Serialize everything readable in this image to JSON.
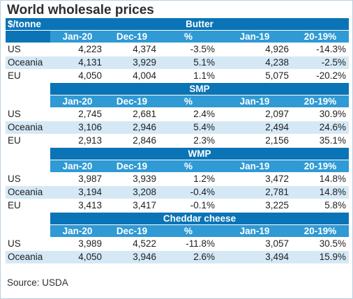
{
  "title": "World wholesale prices",
  "units": "$/tonne",
  "columns": [
    "Jan-20",
    "Dec-19",
    "%",
    "Jan-19",
    "20-19%"
  ],
  "sections": [
    {
      "name": "Butter",
      "rows": [
        {
          "region": "US",
          "values": [
            "4,223",
            "4,374",
            "-3.5%",
            "4,926",
            "-14.3%"
          ]
        },
        {
          "region": "Oceania",
          "values": [
            "4,131",
            "3,929",
            "5.1%",
            "4,238",
            "-2.5%"
          ]
        },
        {
          "region": "EU",
          "values": [
            "4,050",
            "4,004",
            "1.1%",
            "5,075",
            "-20.2%"
          ]
        }
      ]
    },
    {
      "name": "SMP",
      "rows": [
        {
          "region": "US",
          "values": [
            "2,745",
            "2,681",
            "2.4%",
            "2,097",
            "30.9%"
          ]
        },
        {
          "region": "Oceania",
          "values": [
            "3,106",
            "2,946",
            "5.4%",
            "2,494",
            "24.6%"
          ]
        },
        {
          "region": "EU",
          "values": [
            "2,913",
            "2,846",
            "2.3%",
            "2,156",
            "35.1%"
          ]
        }
      ]
    },
    {
      "name": "WMP",
      "rows": [
        {
          "region": "US",
          "values": [
            "3,987",
            "3,939",
            "1.2%",
            "3,472",
            "14.8%"
          ]
        },
        {
          "region": "Oceania",
          "values": [
            "3,194",
            "3,208",
            "-0.4%",
            "2,781",
            "14.8%"
          ]
        },
        {
          "region": "EU",
          "values": [
            "3,413",
            "3,417",
            "-0.1%",
            "3,225",
            "5.8%"
          ]
        }
      ]
    },
    {
      "name": "Cheddar cheese",
      "rows": [
        {
          "region": "US",
          "values": [
            "3,989",
            "4,522",
            "-11.8%",
            "3,057",
            "30.5%"
          ]
        },
        {
          "region": "Oceania",
          "values": [
            "4,050",
            "3,946",
            "2.6%",
            "3,494",
            "15.9%"
          ]
        }
      ]
    }
  ],
  "source": "Source: USDA",
  "colors": {
    "band": "#0b74b6",
    "column_header": "#2f9ad4",
    "shaded_row": "#d5e8f5"
  }
}
